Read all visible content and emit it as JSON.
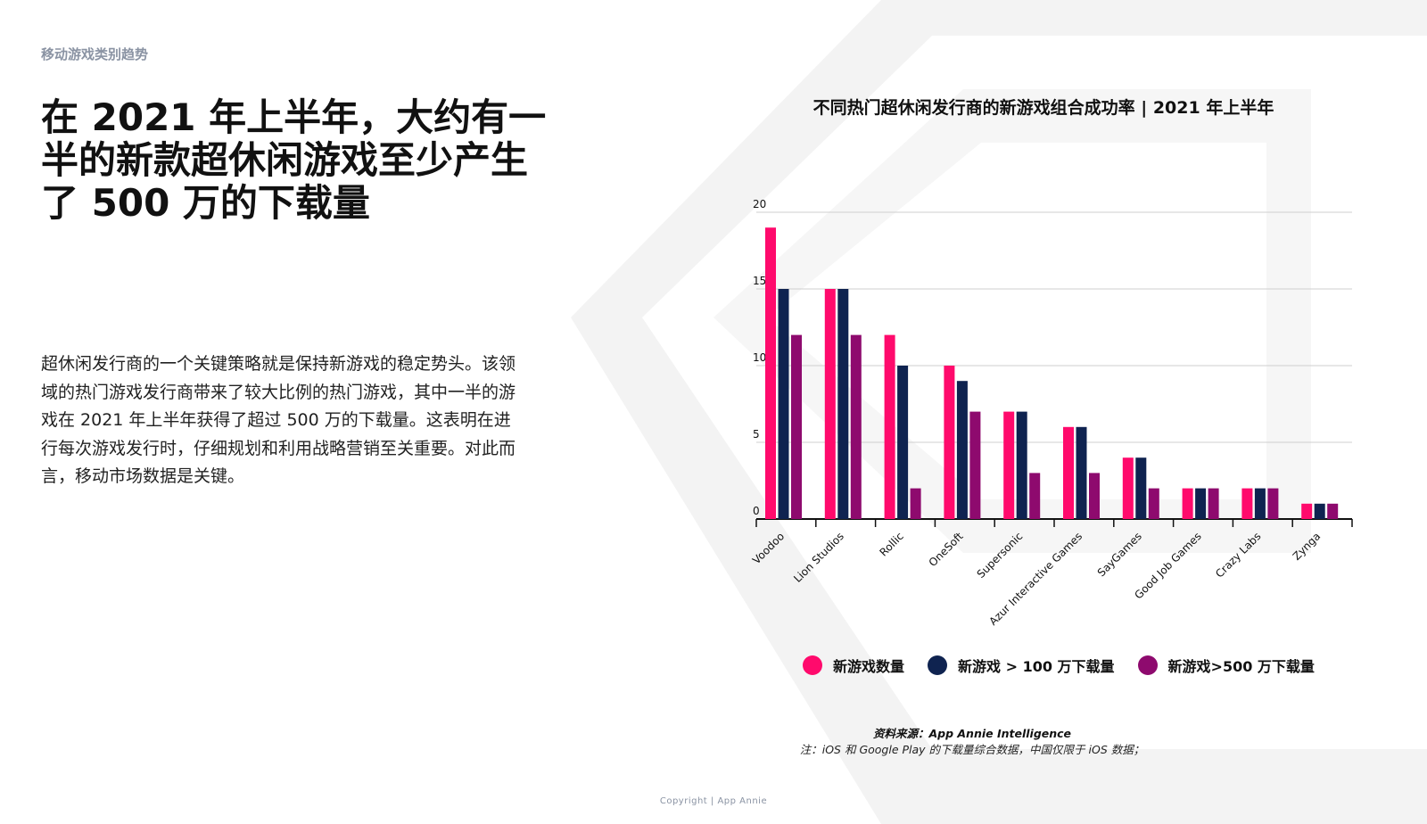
{
  "section_label": "移动游戏类别趋势",
  "headline": "在 2021 年上半年，大约有一半的新款超休闲游戏至少产生了 500 万的下载量",
  "body_text": "超休闲发行商的一个关键策略就是保持新游戏的稳定势头。该领域的热门游戏发行商带来了较大比例的热门游戏，其中一半的游戏在 2021 年上半年获得了超过 500 万的下载量。这表明在进行每次游戏发行时，仔细规划和利用战略营销至关重要。对此而言，移动市场数据是关键。",
  "source": "资料来源：App Annie Intelligence",
  "note": "注：iOS 和 Google Play 的下载量综合数据，中国仅限于 iOS 数据；",
  "copyright": "Copyright | App Annie",
  "chart_data": {
    "type": "bar",
    "title": "不同热门超休闲发行商的新游戏组合成功率 | 2021 年上半年",
    "categories": [
      "Voodoo",
      "Lion Studios",
      "Rollic",
      "OneSoft",
      "Supersonic",
      "Azur Interactive Games",
      "SayGames",
      "Good Job Games",
      "Crazy Labs",
      "Zynga"
    ],
    "series": [
      {
        "name": "新游戏数量",
        "color": "#ff0a6c",
        "values": [
          19,
          15,
          12,
          10,
          7,
          6,
          4,
          2,
          2,
          1
        ]
      },
      {
        "name": "新游戏 > 100 万下载量",
        "color": "#0f2350",
        "values": [
          15,
          15,
          10,
          9,
          7,
          6,
          4,
          2,
          2,
          1
        ]
      },
      {
        "name": "新游戏>500 万下载量",
        "color": "#8e0a6e",
        "values": [
          12,
          12,
          2,
          7,
          3,
          3,
          2,
          2,
          2,
          1
        ]
      }
    ],
    "yticks": [
      "0",
      "5",
      "10",
      "15",
      "20"
    ],
    "ylim": [
      0,
      20
    ],
    "grid": true,
    "legend": "bottom",
    "xlabel": "",
    "ylabel": ""
  },
  "colors": {
    "accent_pink": "#ff0a6c",
    "navy": "#0f2350",
    "purple": "#8e0a6e",
    "muted_gray": "#8a93a3",
    "decoration": "#f2f2f2"
  }
}
